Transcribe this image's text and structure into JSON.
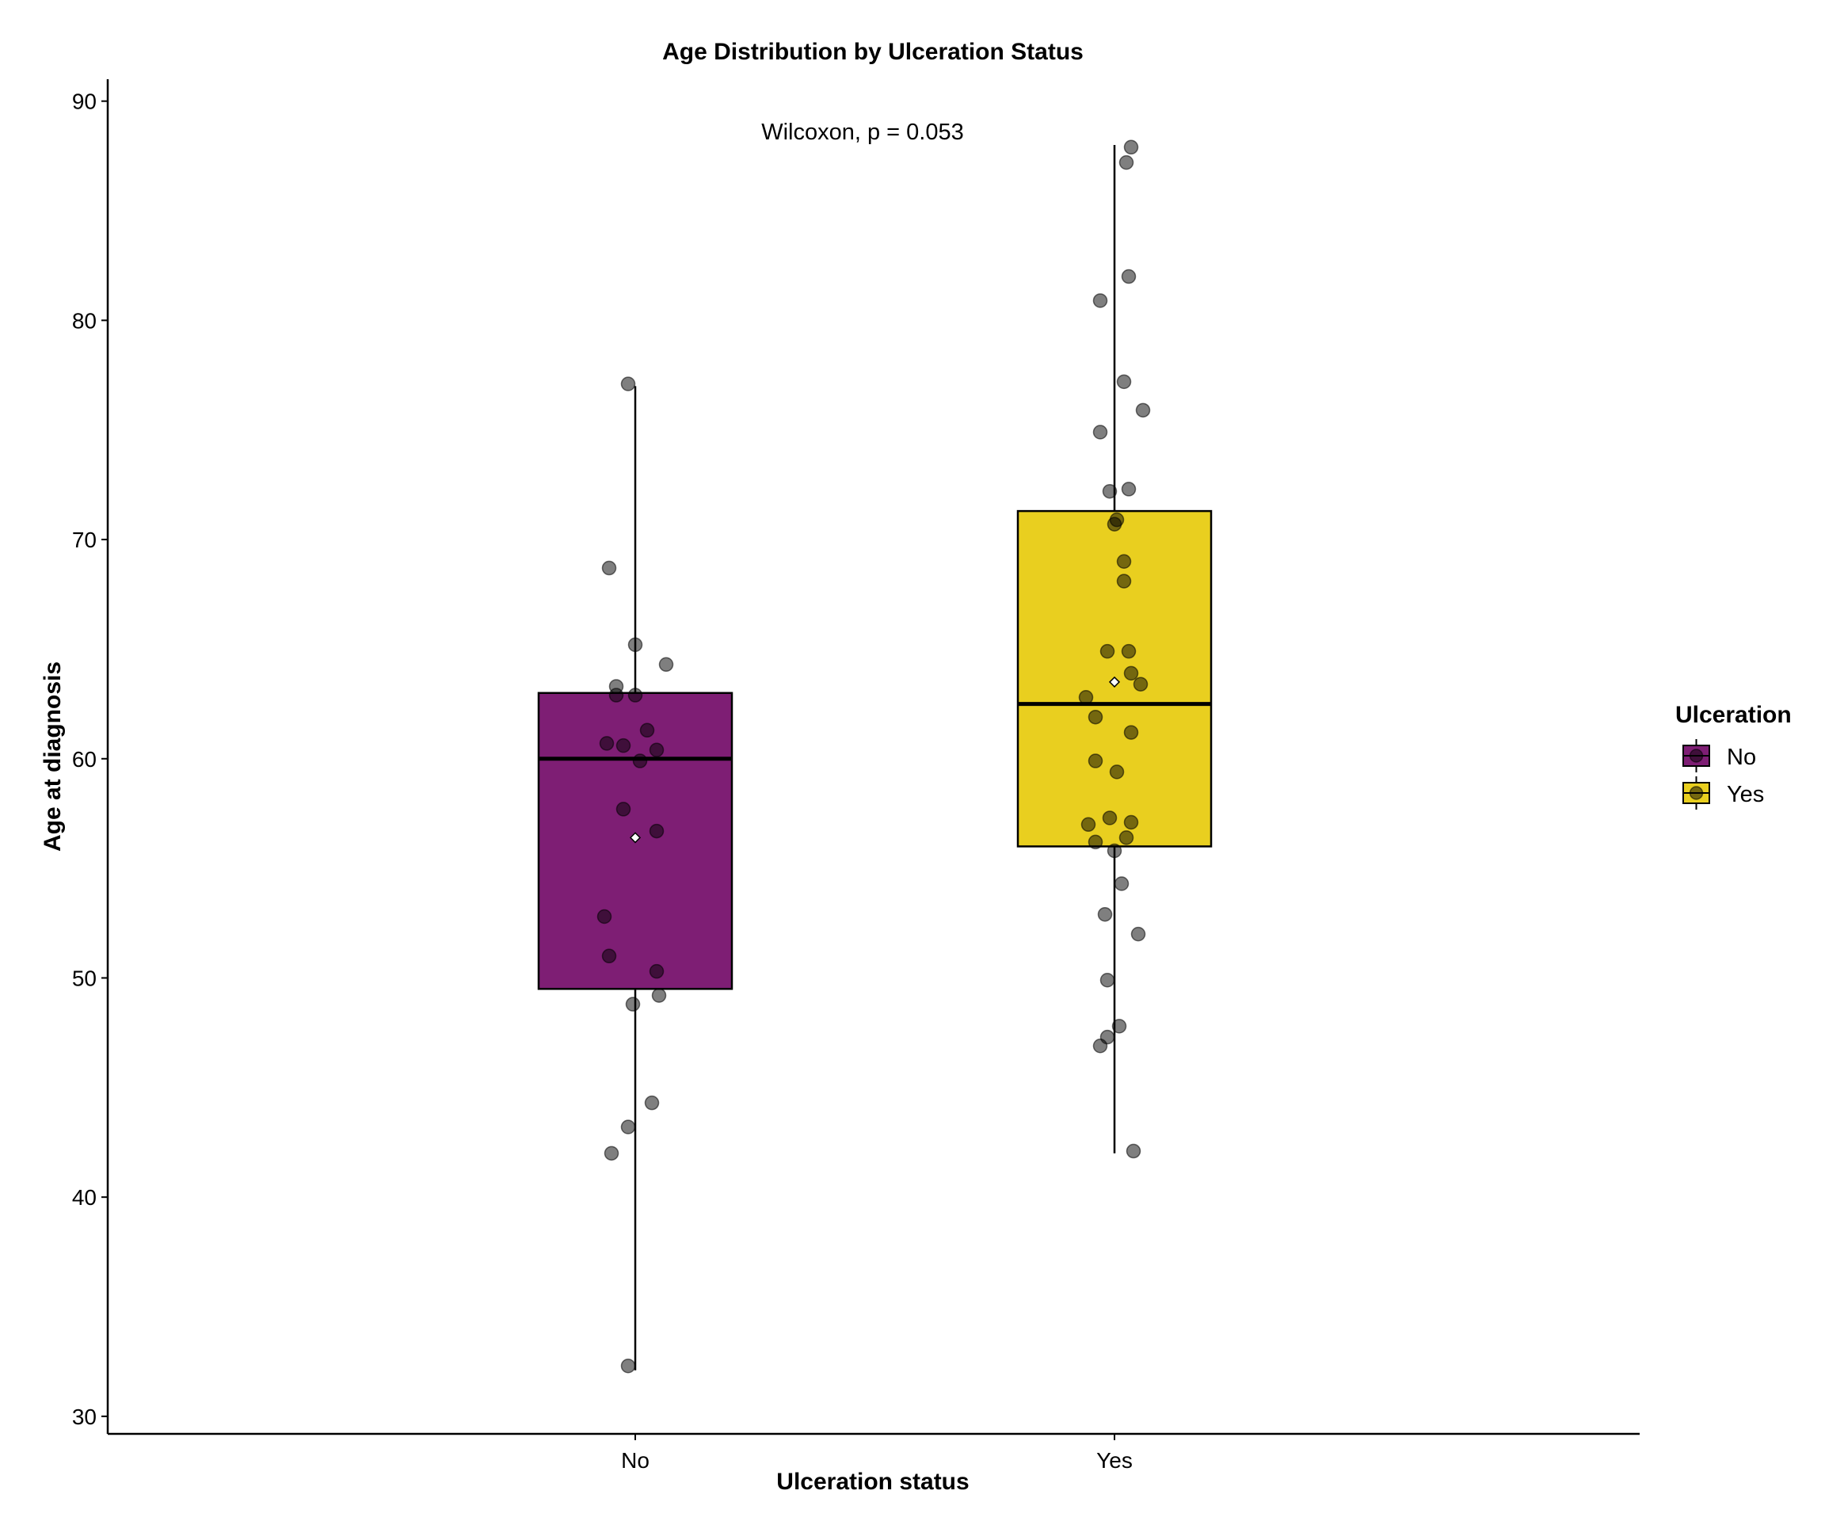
{
  "chart_data": {
    "type": "boxplot",
    "title": "Age Distribution by Ulceration Status",
    "annotation": "Wilcoxon, p = 0.053",
    "xlabel": "Ulceration status",
    "ylabel": "Age at diagnosis",
    "categories": [
      "No",
      "Yes"
    ],
    "ylim": [
      29.2,
      91.0
    ],
    "yticks": [
      30,
      40,
      50,
      60,
      70,
      80,
      90
    ],
    "grid": false,
    "legend": {
      "title": "Ulceration",
      "position": "right",
      "entries": [
        "No",
        "Yes"
      ]
    },
    "series": [
      {
        "category": "No",
        "color": "#7E1E74",
        "box": {
          "whisker_low": 32.1,
          "q1": 49.5,
          "median": 60.0,
          "q3": 63.0,
          "whisker_high": 77.0
        },
        "mean": 56.4,
        "points": [
          [
            -0.03,
            77.1
          ],
          [
            -0.11,
            68.7
          ],
          [
            0.0,
            65.2
          ],
          [
            0.13,
            64.3
          ],
          [
            -0.08,
            63.3
          ],
          [
            -0.08,
            62.9
          ],
          [
            0.0,
            62.9
          ],
          [
            0.05,
            61.3
          ],
          [
            -0.12,
            60.7
          ],
          [
            -0.05,
            60.6
          ],
          [
            0.09,
            60.4
          ],
          [
            0.02,
            59.9
          ],
          [
            -0.05,
            57.7
          ],
          [
            0.09,
            56.7
          ],
          [
            -0.13,
            52.8
          ],
          [
            -0.11,
            51.0
          ],
          [
            0.09,
            50.3
          ],
          [
            0.1,
            49.2
          ],
          [
            -0.01,
            48.8
          ],
          [
            0.07,
            44.3
          ],
          [
            -0.03,
            43.2
          ],
          [
            -0.1,
            42.0
          ],
          [
            -0.03,
            32.3
          ]
        ]
      },
      {
        "category": "Yes",
        "color": "#E9CF1F",
        "box": {
          "whisker_low": 42.0,
          "q1": 56.0,
          "median": 62.5,
          "q3": 71.3,
          "whisker_high": 88.0
        },
        "mean": 63.5,
        "points": [
          [
            0.07,
            87.9
          ],
          [
            0.05,
            87.2
          ],
          [
            0.06,
            82.0
          ],
          [
            -0.06,
            80.9
          ],
          [
            0.04,
            77.2
          ],
          [
            0.12,
            75.9
          ],
          [
            -0.06,
            74.9
          ],
          [
            0.06,
            72.3
          ],
          [
            -0.02,
            72.2
          ],
          [
            0.01,
            70.9
          ],
          [
            0.0,
            70.7
          ],
          [
            0.04,
            69.0
          ],
          [
            0.04,
            68.1
          ],
          [
            -0.03,
            64.9
          ],
          [
            0.06,
            64.9
          ],
          [
            0.07,
            63.9
          ],
          [
            0.11,
            63.4
          ],
          [
            -0.12,
            62.8
          ],
          [
            -0.08,
            61.9
          ],
          [
            0.07,
            61.2
          ],
          [
            -0.08,
            59.9
          ],
          [
            0.01,
            59.4
          ],
          [
            -0.02,
            57.3
          ],
          [
            0.07,
            57.1
          ],
          [
            -0.11,
            57.0
          ],
          [
            0.05,
            56.4
          ],
          [
            -0.08,
            56.2
          ],
          [
            0.0,
            55.8
          ],
          [
            0.03,
            54.3
          ],
          [
            -0.04,
            52.9
          ],
          [
            0.1,
            52.0
          ],
          [
            -0.03,
            49.9
          ],
          [
            0.02,
            47.8
          ],
          [
            -0.03,
            47.3
          ],
          [
            -0.06,
            46.9
          ],
          [
            0.08,
            42.1
          ]
        ]
      }
    ]
  }
}
